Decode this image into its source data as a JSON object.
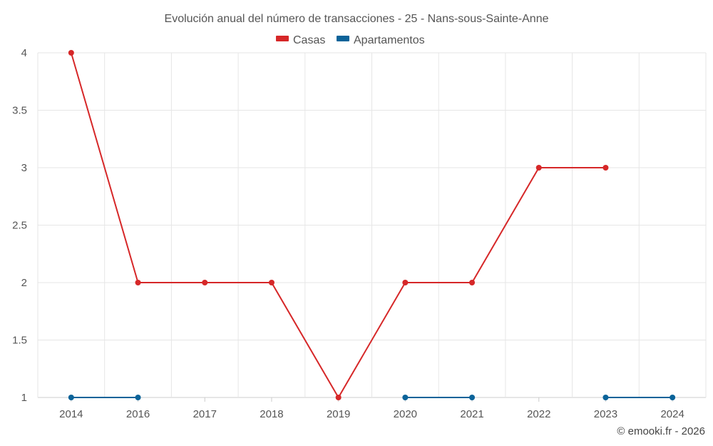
{
  "chart_data": {
    "type": "line",
    "title": "Evolución anual del número de transacciones - 25 - Nans-sous-Sainte-Anne",
    "categories": [
      "2014",
      "2016",
      "2017",
      "2018",
      "2019",
      "2020",
      "2021",
      "2022",
      "2023",
      "2024"
    ],
    "yticks": [
      "1",
      "1.5",
      "2",
      "2.5",
      "3",
      "3.5",
      "4"
    ],
    "ylim": [
      1,
      4
    ],
    "grid": true,
    "legend_position": "top-center",
    "series": [
      {
        "name": "Casas",
        "color": "#d62728",
        "values": [
          4,
          2,
          2,
          2,
          1,
          2,
          2,
          3,
          3,
          null
        ]
      },
      {
        "name": "Apartamentos",
        "color": "#0a6399",
        "values": [
          1,
          1,
          null,
          null,
          null,
          1,
          1,
          null,
          1,
          1
        ]
      }
    ]
  },
  "credit": "© emooki.fr - 2026"
}
